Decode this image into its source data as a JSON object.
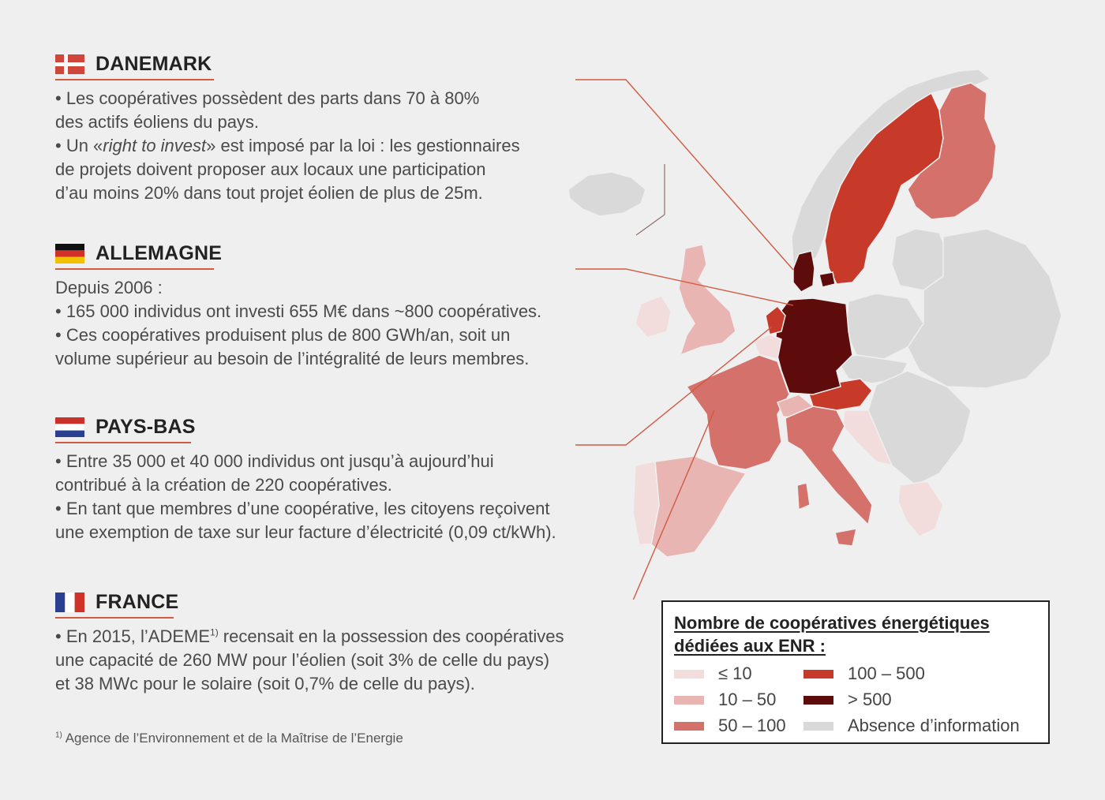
{
  "sections": [
    {
      "id": "danemark",
      "name": "DANEMARK",
      "intro": "",
      "lines": [
        [
          "• Les coopératives possèdent des parts dans 70 à 80%",
          "des actifs éoliens du pays."
        ],
        [
          "• Un «",
          "right to invest",
          "» est imposé par la loi : les gestionnaires",
          "de projets doivent proposer aux locaux une participation",
          "d’au moins 20% dans tout projet éolien de plus de 25m."
        ]
      ]
    },
    {
      "id": "allemagne",
      "name": "ALLEMAGNE",
      "intro": "Depuis 2006 :",
      "lines": [
        [
          "• 165 000 individus ont investi 655 M€ dans ~800 coopératives."
        ],
        [
          "• Ces coopératives produisent plus de 800 GWh/an, soit un",
          "volume supérieur au besoin de l’intégralité de leurs membres."
        ]
      ]
    },
    {
      "id": "paysbas",
      "name": "PAYS-BAS",
      "intro": "",
      "lines": [
        [
          "• Entre 35 000 et 40 000 individus ont jusqu’à aujourd’hui",
          "contribué à la création de 220 coopératives."
        ],
        [
          "• En tant que membres d’une coopérative, les citoyens reçoivent",
          "une exemption de taxe sur leur facture d’électricité (0,09 ct/kWh)."
        ]
      ]
    },
    {
      "id": "france",
      "name": "FRANCE",
      "intro": "",
      "lines": [
        [
          "• En 2015, l’ADEME",
          "1)",
          " recensait en la possession des coopératives",
          "une capacité de 260 MW pour l’éolien (soit 3% de celle du pays)",
          "et 38 MWc pour le solaire (soit 0,7% de celle du pays)."
        ]
      ]
    }
  ],
  "footnote": {
    "mark": "1)",
    "text": " Agence de l’Environnement et de la Maîtrise de l’Energie"
  },
  "legend": {
    "title_line1": "Nombre de coopératives énergétiques",
    "title_line2": "dédiées aux ENR :",
    "items": [
      {
        "label": "≤ 10",
        "color": "#f2dcdc"
      },
      {
        "label": "10 – 50",
        "color": "#e8b5b3"
      },
      {
        "label": "50 – 100",
        "color": "#d4716a"
      },
      {
        "label": "100 – 500",
        "color": "#c73a2a"
      },
      {
        "label": "> 500",
        "color": "#5e0b0b"
      },
      {
        "label": "Absence d’information",
        "color": "#d9d9d9"
      }
    ]
  },
  "colors": {
    "accent_line": "#d05a42",
    "no_info": "#d9d9d9",
    "le10": "#f2dcdc",
    "c10_50": "#e8b5b3",
    "c50_100": "#d4716a",
    "c100_500": "#c73a2a",
    "gt500": "#5e0b0b"
  }
}
